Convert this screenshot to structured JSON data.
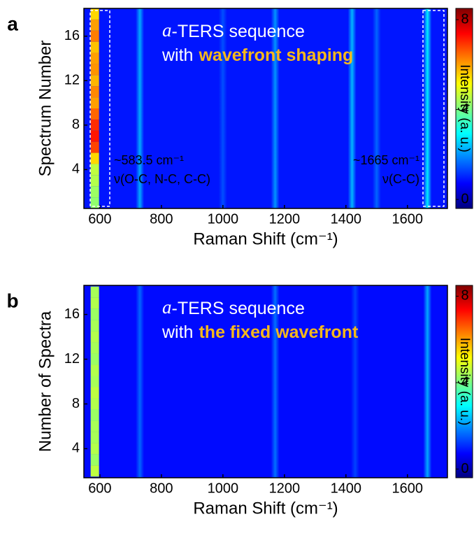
{
  "chart_data": [
    {
      "type": "heatmap",
      "panel": "a",
      "xlabel": "Raman Shift (cm⁻¹)",
      "ylabel": "Spectrum Number",
      "xlim": [
        548,
        1730
      ],
      "xticks": [
        600,
        800,
        1000,
        1200,
        1400,
        1600
      ],
      "ylim": [
        0.5,
        18.5
      ],
      "yticks": [
        4,
        8,
        12,
        16
      ],
      "colormap": "jet",
      "colorbar": {
        "label": "Intensity (a. u.)",
        "lim": [
          -0.4,
          8.5
        ],
        "ticks": [
          0,
          4,
          8
        ]
      },
      "background": 0.9,
      "spectra": [
        1,
        2,
        3,
        4,
        5,
        6,
        7,
        8,
        9,
        10,
        11,
        12,
        13,
        14,
        15,
        16,
        17,
        18
      ],
      "band": {
        "x": 583.5,
        "values": [
          4.2,
          4.3,
          4.5,
          4.6,
          5.5,
          6.8,
          7.2,
          7.0,
          6.5,
          6.0,
          6.2,
          5.8,
          6.1,
          6.0,
          5.7,
          6.3,
          6.0,
          5.5
        ]
      },
      "peaks": {
        "x": [
          730,
          1000,
          1170,
          1420,
          1500,
          1665
        ],
        "values": [
          2.2,
          1.4,
          2.0,
          2.3,
          1.6,
          2.8
        ]
      },
      "annotation": [
        "a",
        "-TERS sequence",
        "with",
        "wavefront shaping"
      ],
      "peak_labels": [
        "~583.5 cm⁻¹",
        "ν(O-C, N-C, C-C)",
        "~1665 cm⁻¹",
        "ν(C-C)"
      ]
    },
    {
      "type": "heatmap",
      "panel": "b",
      "xlabel": "Raman Shift (cm⁻¹)",
      "ylabel": "Number of Spectra",
      "xlim": [
        548,
        1730
      ],
      "xticks": [
        600,
        800,
        1000,
        1200,
        1400,
        1600
      ],
      "ylim": [
        1.4,
        18.6
      ],
      "yticks": [
        4,
        8,
        12,
        16
      ],
      "colormap": "jet",
      "colorbar": {
        "label": "Intensity (a. u.)",
        "lim": [
          -0.4,
          8.5
        ],
        "ticks": [
          0,
          4,
          8
        ]
      },
      "background": 0.8,
      "spectra": [
        2,
        3,
        4,
        5,
        6,
        7,
        8,
        9,
        10,
        11,
        12,
        13,
        14,
        15,
        16,
        17,
        18
      ],
      "band": {
        "x": 583.5,
        "values": [
          4.6,
          4.3,
          4.5,
          4.4,
          4.4,
          4.3,
          4.5,
          4.6,
          4.4,
          4.5,
          4.3,
          4.4,
          4.5,
          4.4,
          4.3,
          4.5,
          4.4
        ]
      },
      "peaks": {
        "x": [
          730,
          1170,
          1430,
          1665
        ],
        "values": [
          1.6,
          1.7,
          1.3,
          2.2
        ]
      },
      "annotation": [
        "a",
        "-TERS sequence",
        "with",
        "the fixed wavefront"
      ]
    }
  ]
}
